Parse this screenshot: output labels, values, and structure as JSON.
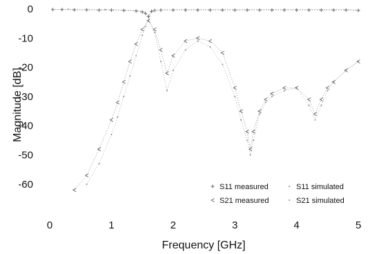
{
  "chart_data": {
    "type": "line",
    "xlabel": "Frequency [GHz]",
    "ylabel": "Magnitude [dB]",
    "xlim": [
      0,
      5
    ],
    "ylim": [
      -65,
      0
    ],
    "x_ticks": [
      "0",
      "1",
      "2",
      "3",
      "4",
      "5"
    ],
    "y_ticks": [
      "0",
      "-10",
      "-20",
      "-30",
      "-40",
      "-50",
      "-60"
    ],
    "grid": false,
    "legend": "bottom-right",
    "series": [
      {
        "name": "S11 measured",
        "marker": "plus",
        "color": "#555555",
        "x": [
          0.05,
          0.2,
          0.4,
          0.6,
          0.8,
          1.0,
          1.2,
          1.4,
          1.5,
          1.55,
          1.6,
          1.65,
          1.7,
          1.8,
          2.0,
          2.2,
          2.4,
          2.6,
          2.8,
          3.0,
          3.2,
          3.4,
          3.6,
          3.8,
          4.0,
          4.2,
          4.4,
          4.6,
          4.8,
          5.0
        ],
        "y": [
          -0.2,
          -0.2,
          -0.3,
          -0.3,
          -0.4,
          -0.4,
          -0.5,
          -0.7,
          -1.0,
          -1.5,
          -2.5,
          -0.8,
          -0.5,
          -0.4,
          -0.4,
          -0.4,
          -0.4,
          -0.4,
          -0.4,
          -0.4,
          -0.4,
          -0.4,
          -0.4,
          -0.4,
          -0.4,
          -0.4,
          -0.4,
          -0.4,
          -0.4,
          -0.5
        ]
      },
      {
        "name": "S11 simulated",
        "marker": "dot",
        "color": "#888888",
        "x": [
          0.05,
          0.3,
          0.6,
          0.9,
          1.2,
          1.4,
          1.5,
          1.55,
          1.6,
          1.65,
          1.7,
          1.8,
          2.0,
          2.2,
          2.4,
          2.6,
          2.8,
          3.0,
          3.2,
          3.4,
          3.6,
          3.8,
          4.0,
          4.2,
          4.4,
          4.6,
          4.8,
          5.0
        ],
        "y": [
          -0.1,
          -0.1,
          -0.2,
          -0.2,
          -0.3,
          -0.5,
          -0.8,
          -1.5,
          -3.0,
          -1.0,
          -0.5,
          -0.3,
          -0.2,
          -0.2,
          -0.2,
          -0.2,
          -0.2,
          -0.2,
          -0.2,
          -0.2,
          -0.2,
          -0.2,
          -0.2,
          -0.2,
          -0.2,
          -0.2,
          -0.2,
          -0.3
        ]
      },
      {
        "name": "S21 measured",
        "marker": "lt",
        "color": "#666666",
        "x": [
          0.4,
          0.6,
          0.8,
          1.0,
          1.1,
          1.2,
          1.3,
          1.4,
          1.5,
          1.6,
          1.7,
          1.8,
          1.9,
          2.0,
          2.2,
          2.4,
          2.6,
          2.8,
          3.0,
          3.1,
          3.2,
          3.25,
          3.3,
          3.4,
          3.5,
          3.6,
          3.8,
          4.0,
          4.2,
          4.3,
          4.4,
          4.5,
          4.6,
          4.8,
          5.0
        ],
        "y": [
          -62,
          -57,
          -48,
          -38,
          -32,
          -25,
          -18,
          -12,
          -7,
          -4,
          -7,
          -14,
          -22,
          -16,
          -11,
          -10,
          -11,
          -15,
          -27,
          -35,
          -42,
          -48,
          -42,
          -35,
          -31,
          -29,
          -27,
          -27,
          -31,
          -36,
          -31,
          -27,
          -25,
          -21,
          -18
        ]
      },
      {
        "name": "S21 simulated",
        "marker": "dot",
        "color": "#888888",
        "x": [
          0.6,
          0.8,
          1.0,
          1.1,
          1.2,
          1.3,
          1.4,
          1.5,
          1.55,
          1.6,
          1.7,
          1.8,
          1.9,
          2.0,
          2.2,
          2.4,
          2.6,
          2.8,
          3.0,
          3.1,
          3.2,
          3.25,
          3.3,
          3.4,
          3.5,
          3.6,
          3.8,
          4.0,
          4.2,
          4.3,
          4.4,
          4.5,
          4.6,
          4.8,
          5.0
        ],
        "y": [
          -60,
          -53,
          -43,
          -37,
          -30,
          -23,
          -16,
          -9,
          -6,
          -4,
          -8,
          -18,
          -28,
          -21,
          -14,
          -11,
          -13,
          -19,
          -30,
          -38,
          -45,
          -50,
          -45,
          -36,
          -32,
          -30,
          -28,
          -27,
          -33,
          -38,
          -33,
          -28,
          -25,
          -21,
          -18
        ]
      }
    ]
  }
}
